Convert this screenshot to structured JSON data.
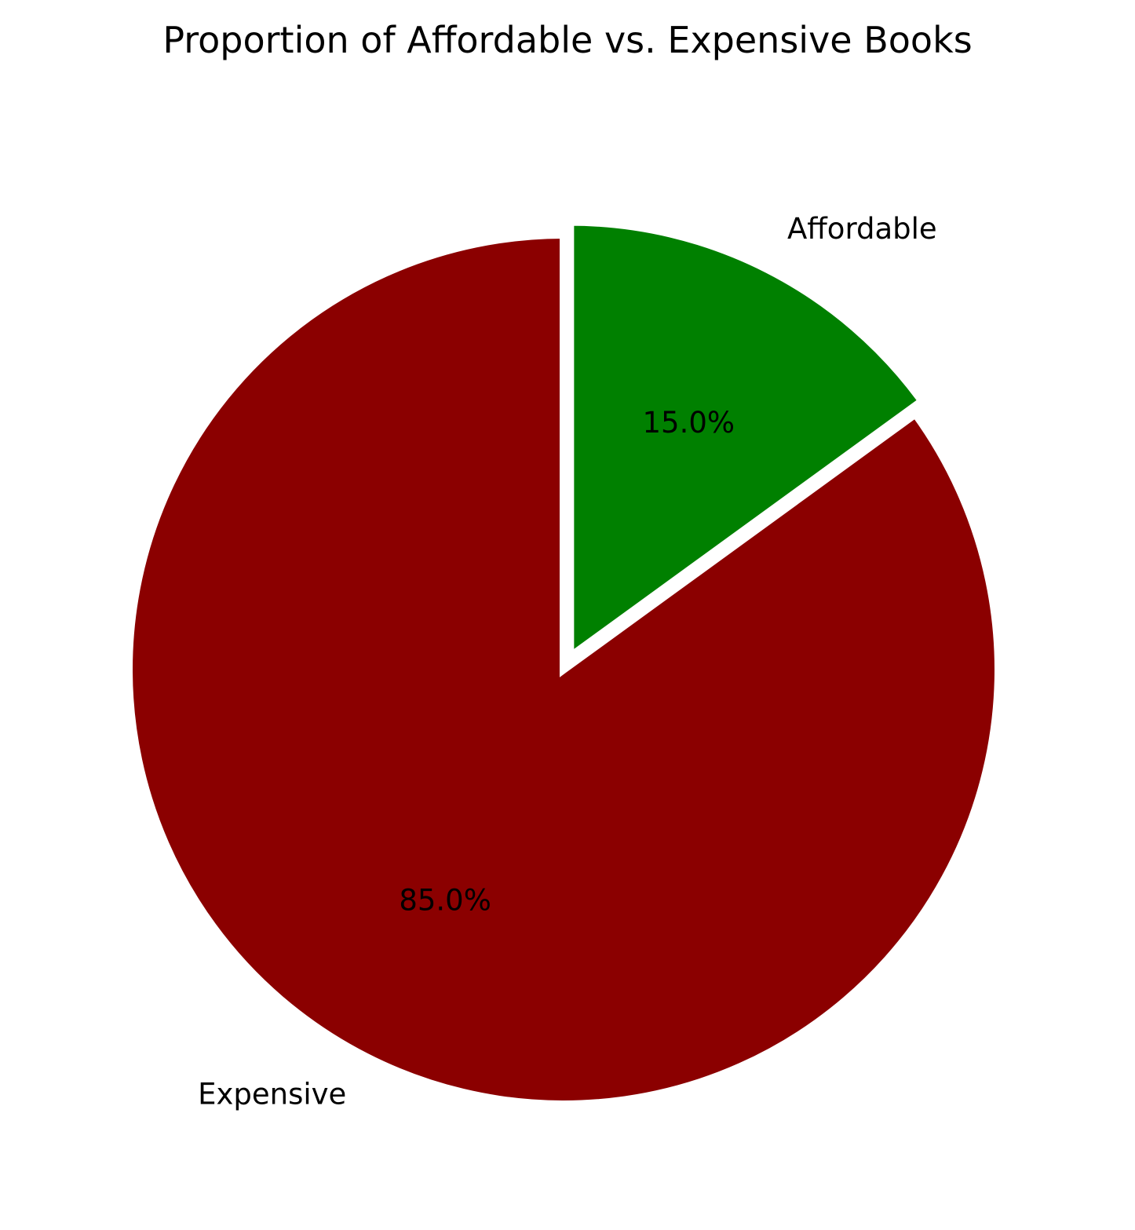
{
  "chart_data": {
    "type": "pie",
    "title": "Proportion of Affordable vs. Expensive Books",
    "slices": [
      {
        "label": "Affordable",
        "value": 15.0,
        "pct_label": "15.0%",
        "color": "#008000",
        "exploded": true
      },
      {
        "label": "Expensive",
        "value": 85.0,
        "pct_label": "85.0%",
        "color": "#8b0000",
        "exploded": false
      }
    ],
    "start_angle_deg": 90,
    "direction": "clockwise",
    "edge_color": "#ffffff",
    "legend": "none"
  }
}
